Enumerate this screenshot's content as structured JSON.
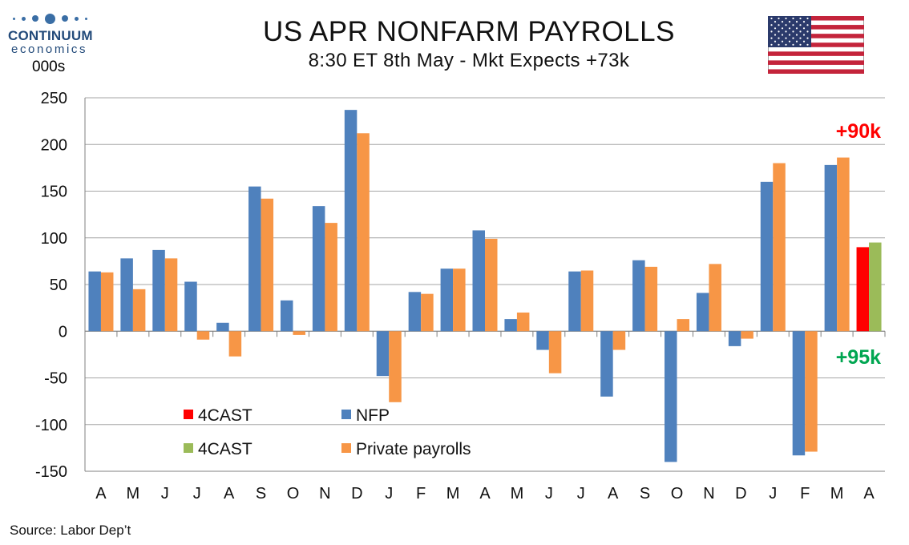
{
  "brand": {
    "name": "CONTINUUM",
    "sub": "economics"
  },
  "header": {
    "units": "000s",
    "title": "US APR NONFARM PAYROLLS",
    "subtitle": "8:30 ET 8th May - Mkt Expects +73k"
  },
  "source": "Source: Labor Dep’t",
  "colors": {
    "nfp": "#4f81bd",
    "private": "#f79646",
    "forecast_nfp": "#ff0000",
    "forecast_private": "#9bbb59",
    "grid": "#a6a6a6"
  },
  "icons": {
    "flag": "us-flag-icon",
    "logo": "continuum-logo-dots"
  },
  "chart_data": {
    "type": "bar",
    "title": "US APR NONFARM PAYROLLS",
    "ylabel": "000s",
    "ylim": [
      -150,
      250
    ],
    "yticks": [
      250,
      200,
      150,
      100,
      50,
      0,
      -50,
      -100,
      -150
    ],
    "grid": true,
    "categories": [
      "A",
      "M",
      "J",
      "J",
      "A",
      "S",
      "O",
      "N",
      "D",
      "J",
      "F",
      "M",
      "A",
      "M",
      "J",
      "J",
      "A",
      "S",
      "O",
      "N",
      "D",
      "J",
      "F",
      "M",
      "A"
    ],
    "series": [
      {
        "name": "NFP",
        "color": "#4f81bd",
        "values": [
          64,
          78,
          87,
          53,
          9,
          155,
          33,
          134,
          237,
          -48,
          42,
          67,
          108,
          13,
          -20,
          64,
          -70,
          76,
          -140,
          41,
          -16,
          160,
          -133,
          178,
          null
        ]
      },
      {
        "name": "Private payrolls",
        "color": "#f79646",
        "values": [
          63,
          45,
          78,
          -9,
          -27,
          142,
          -4,
          116,
          212,
          -76,
          40,
          67,
          99,
          20,
          -45,
          65,
          -20,
          69,
          13,
          72,
          -8,
          180,
          -129,
          186,
          null
        ]
      },
      {
        "name": "4CAST",
        "color": "#ff0000",
        "values": [
          null,
          null,
          null,
          null,
          null,
          null,
          null,
          null,
          null,
          null,
          null,
          null,
          null,
          null,
          null,
          null,
          null,
          null,
          null,
          null,
          null,
          null,
          null,
          null,
          90
        ]
      },
      {
        "name": "4CAST",
        "color": "#9bbb59",
        "values": [
          null,
          null,
          null,
          null,
          null,
          null,
          null,
          null,
          null,
          null,
          null,
          null,
          null,
          null,
          null,
          null,
          null,
          null,
          null,
          null,
          null,
          null,
          null,
          null,
          95
        ]
      }
    ],
    "legend": [
      {
        "label": "4CAST",
        "color": "#ff0000"
      },
      {
        "label": "NFP",
        "color": "#4f81bd"
      },
      {
        "label": "4CAST",
        "color": "#9bbb59"
      },
      {
        "label": "Private payrolls",
        "color": "#f79646"
      }
    ],
    "legend_position": "bottom-left",
    "annotations": [
      {
        "text": "+90k",
        "color": "#ff0000"
      },
      {
        "text": "+95k",
        "color": "#00a651"
      }
    ]
  }
}
